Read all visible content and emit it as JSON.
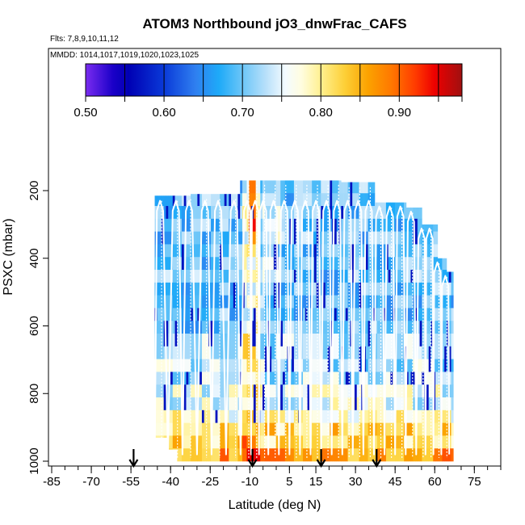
{
  "chart_data": {
    "type": "heatmap",
    "title": "ATOM3 Northbound jO3_dnwFrac_CAFS",
    "flights_note": "Flts: 7,8,9,10,11,12",
    "dates_note": "MMDD: 1014,1017,1019,1020,1023,1025",
    "xlabel": "Latitude (deg N)",
    "ylabel": "PSXC (mbar)",
    "xlim": [
      -85,
      85
    ],
    "ylim": [
      1010,
      0
    ],
    "x_ticks": [
      -85,
      -70,
      -55,
      -40,
      -25,
      -10,
      5,
      15,
      30,
      45,
      60,
      75
    ],
    "x_tick_labels": [
      "-85",
      "-70",
      "-55",
      "-40",
      "-25",
      "-10",
      "5",
      "15",
      "30",
      "45",
      "60",
      "75"
    ],
    "y_ticks": [
      200,
      400,
      600,
      800,
      1000
    ],
    "y_tick_labels": [
      "200",
      "400",
      "600",
      "800",
      "1000"
    ],
    "colorbar": {
      "range": [
        0.5,
        0.98
      ],
      "tick_values": [
        0.5,
        0.6,
        0.7,
        0.8,
        0.9
      ],
      "tick_labels": [
        "0.50",
        "0.60",
        "0.70",
        "0.80",
        "0.90"
      ],
      "segment_breaks": [
        0.5,
        0.55,
        0.6,
        0.65,
        0.7,
        0.75,
        0.8,
        0.85,
        0.9,
        0.95,
        0.98
      ],
      "stops": [
        {
          "v": 0.5,
          "c": "#7a2cf0"
        },
        {
          "v": 0.535,
          "c": "#1a00c8"
        },
        {
          "v": 0.555,
          "c": "#0000b4"
        },
        {
          "v": 0.6,
          "c": "#0a3ad8"
        },
        {
          "v": 0.64,
          "c": "#2f7ff0"
        },
        {
          "v": 0.67,
          "c": "#1eaaf8"
        },
        {
          "v": 0.7,
          "c": "#6cc6f8"
        },
        {
          "v": 0.73,
          "c": "#b8e0fa"
        },
        {
          "v": 0.755,
          "c": "#f4fbff"
        },
        {
          "v": 0.775,
          "c": "#fffde0"
        },
        {
          "v": 0.8,
          "c": "#fff090"
        },
        {
          "v": 0.83,
          "c": "#fdd038"
        },
        {
          "v": 0.86,
          "c": "#fba200"
        },
        {
          "v": 0.89,
          "c": "#ff7800"
        },
        {
          "v": 0.92,
          "c": "#ff3c00"
        },
        {
          "v": 0.945,
          "c": "#ee0000"
        },
        {
          "v": 0.98,
          "c": "#a01010"
        }
      ]
    },
    "arrow_latitudes": [
      -54,
      -9,
      17,
      38
    ],
    "data_extent": {
      "lat_min": -46,
      "lat_max": 67,
      "p_top": 170,
      "p_bottom": 1000
    }
  }
}
